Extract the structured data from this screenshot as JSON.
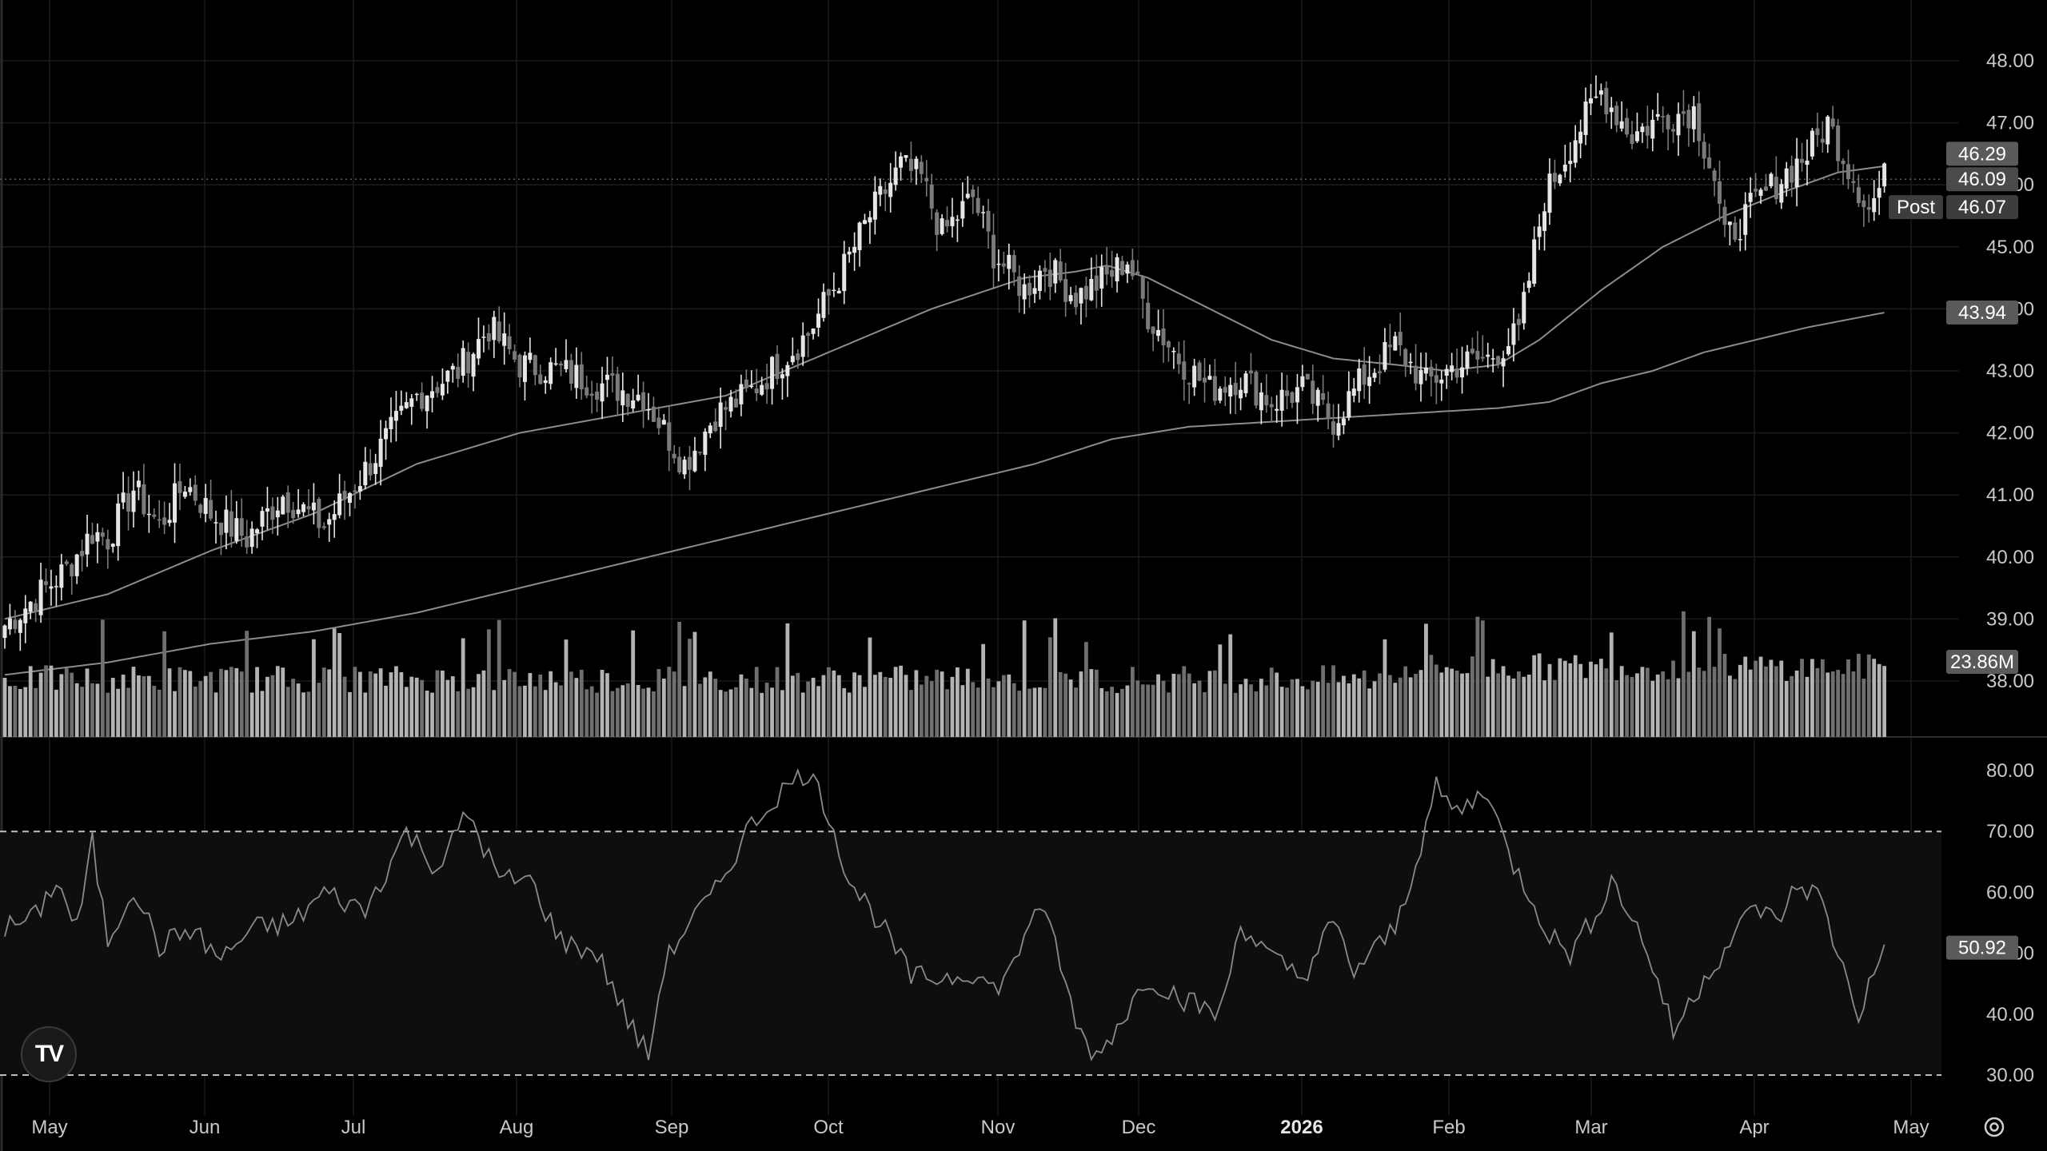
{
  "chart_data": {
    "type": "candlestick",
    "price_axis": {
      "ticks": [
        "48.00",
        "47.00",
        "46.00",
        "45.00",
        "44.00",
        "43.00",
        "42.00",
        "41.00",
        "40.00",
        "39.00",
        "38.00"
      ],
      "ylim": [
        37.2,
        48.7
      ]
    },
    "rsi_axis": {
      "ticks": [
        "80.00",
        "70.00",
        "60.00",
        "50.00",
        "40.00",
        "30.00"
      ],
      "ylim": [
        26,
        84
      ],
      "bands": [
        70,
        30
      ]
    },
    "x_axis": {
      "labels": [
        "May",
        "Jun",
        "Jul",
        "Aug",
        "Sep",
        "Oct",
        "Nov",
        "Dec",
        "2026",
        "Feb",
        "Mar",
        "Apr",
        "May"
      ],
      "bold": [
        "2026"
      ]
    },
    "price_badges": {
      "ma_fast": "46.29",
      "last": "46.09",
      "post_label": "Post",
      "post": "46.07",
      "ma_slow": "43.94",
      "volume": "23.86M",
      "rsi": "50.92"
    },
    "series": [
      {
        "name": "close",
        "anchors": [
          [
            0,
            38.9
          ],
          [
            12,
            39.8
          ],
          [
            17,
            40.4
          ],
          [
            20,
            40.3
          ],
          [
            25,
            41.1
          ],
          [
            30,
            40.5
          ],
          [
            35,
            41.2
          ],
          [
            40,
            40.7
          ],
          [
            47,
            40.3
          ],
          [
            54,
            41.0
          ],
          [
            62,
            40.5
          ],
          [
            70,
            41.4
          ],
          [
            80,
            42.6
          ],
          [
            88,
            43.0
          ],
          [
            94,
            43.7
          ],
          [
            100,
            43.1
          ],
          [
            108,
            43.0
          ],
          [
            115,
            42.8
          ],
          [
            124,
            42.6
          ],
          [
            132,
            41.5
          ],
          [
            138,
            42.3
          ],
          [
            144,
            42.6
          ],
          [
            150,
            43.1
          ],
          [
            156,
            43.6
          ],
          [
            162,
            44.5
          ],
          [
            168,
            45.5
          ],
          [
            174,
            46.3
          ],
          [
            178,
            46.1
          ],
          [
            182,
            45.2
          ],
          [
            188,
            45.8
          ],
          [
            192,
            44.9
          ],
          [
            198,
            44.3
          ],
          [
            202,
            44.7
          ],
          [
            208,
            44.2
          ],
          [
            214,
            44.5
          ],
          [
            218,
            44.8
          ],
          [
            222,
            43.9
          ],
          [
            228,
            43.2
          ],
          [
            234,
            42.7
          ],
          [
            240,
            42.9
          ],
          [
            246,
            42.5
          ],
          [
            252,
            42.7
          ],
          [
            258,
            42.2
          ],
          [
            264,
            42.9
          ],
          [
            270,
            43.4
          ],
          [
            276,
            42.8
          ],
          [
            282,
            43.1
          ],
          [
            288,
            43.2
          ],
          [
            294,
            43.6
          ],
          [
            299,
            45.8
          ],
          [
            305,
            46.8
          ],
          [
            310,
            47.5
          ],
          [
            316,
            46.8
          ],
          [
            322,
            47.1
          ],
          [
            328,
            47.2
          ],
          [
            332,
            46.1
          ],
          [
            334,
            45.1
          ],
          [
            340,
            45.7
          ],
          [
            346,
            46.2
          ],
          [
            350,
            46.5
          ],
          [
            354,
            47.0
          ],
          [
            358,
            46.3
          ],
          [
            362,
            45.6
          ],
          [
            365,
            46.1
          ]
        ],
        "opens_shift": 0.35
      },
      {
        "name": "volume",
        "ylim": [
          0,
          140
        ]
      },
      {
        "name": "RSI",
        "anchors": [
          [
            0,
            54
          ],
          [
            6,
            56
          ],
          [
            10,
            62
          ],
          [
            14,
            54
          ],
          [
            17,
            68
          ],
          [
            20,
            52
          ],
          [
            25,
            61
          ],
          [
            30,
            51
          ],
          [
            36,
            54
          ],
          [
            42,
            49
          ],
          [
            48,
            54
          ],
          [
            56,
            55
          ],
          [
            62,
            60
          ],
          [
            70,
            57
          ],
          [
            78,
            70
          ],
          [
            84,
            64
          ],
          [
            90,
            73
          ],
          [
            96,
            62
          ],
          [
            102,
            62
          ],
          [
            108,
            52
          ],
          [
            115,
            50
          ],
          [
            121,
            39
          ],
          [
            125,
            33
          ],
          [
            128,
            48
          ],
          [
            132,
            54
          ],
          [
            138,
            60
          ],
          [
            144,
            70
          ],
          [
            150,
            76
          ],
          [
            156,
            80
          ],
          [
            160,
            73
          ],
          [
            164,
            62
          ],
          [
            170,
            55
          ],
          [
            176,
            46
          ],
          [
            182,
            46
          ],
          [
            188,
            47
          ],
          [
            192,
            44
          ],
          [
            196,
            48
          ],
          [
            200,
            58
          ],
          [
            204,
            52
          ],
          [
            208,
            38
          ],
          [
            212,
            33
          ],
          [
            216,
            38
          ],
          [
            222,
            46
          ],
          [
            230,
            42
          ],
          [
            236,
            40
          ],
          [
            240,
            55
          ],
          [
            246,
            49
          ],
          [
            252,
            46
          ],
          [
            258,
            55
          ],
          [
            262,
            47
          ],
          [
            270,
            54
          ],
          [
            274,
            65
          ],
          [
            278,
            77
          ],
          [
            282,
            73
          ],
          [
            288,
            77
          ],
          [
            292,
            66
          ],
          [
            296,
            60
          ],
          [
            300,
            53
          ],
          [
            304,
            50
          ],
          [
            308,
            55
          ],
          [
            312,
            62
          ],
          [
            316,
            56
          ],
          [
            320,
            48
          ],
          [
            324,
            37
          ],
          [
            330,
            46
          ],
          [
            336,
            53
          ],
          [
            340,
            58
          ],
          [
            344,
            55
          ],
          [
            348,
            61
          ],
          [
            352,
            60
          ],
          [
            356,
            50
          ],
          [
            360,
            40
          ],
          [
            365,
            51
          ]
        ]
      }
    ],
    "moving_averages": [
      {
        "name": "fast",
        "anchors": [
          [
            0,
            39.0
          ],
          [
            20,
            39.4
          ],
          [
            40,
            40.1
          ],
          [
            60,
            40.7
          ],
          [
            80,
            41.5
          ],
          [
            100,
            42.0
          ],
          [
            120,
            42.3
          ],
          [
            140,
            42.6
          ],
          [
            160,
            43.3
          ],
          [
            180,
            44.0
          ],
          [
            198,
            44.5
          ],
          [
            208,
            44.6
          ],
          [
            214,
            44.7
          ],
          [
            222,
            44.5
          ],
          [
            234,
            44.0
          ],
          [
            246,
            43.5
          ],
          [
            258,
            43.2
          ],
          [
            270,
            43.1
          ],
          [
            280,
            43.0
          ],
          [
            290,
            43.1
          ],
          [
            298,
            43.5
          ],
          [
            310,
            44.3
          ],
          [
            322,
            45.0
          ],
          [
            334,
            45.5
          ],
          [
            346,
            45.9
          ],
          [
            356,
            46.2
          ],
          [
            365,
            46.3
          ]
        ]
      },
      {
        "name": "slow",
        "anchors": [
          [
            0,
            38.1
          ],
          [
            20,
            38.3
          ],
          [
            40,
            38.6
          ],
          [
            60,
            38.8
          ],
          [
            80,
            39.1
          ],
          [
            100,
            39.5
          ],
          [
            120,
            39.9
          ],
          [
            140,
            40.3
          ],
          [
            160,
            40.7
          ],
          [
            180,
            41.1
          ],
          [
            200,
            41.5
          ],
          [
            215,
            41.9
          ],
          [
            230,
            42.1
          ],
          [
            250,
            42.2
          ],
          [
            270,
            42.3
          ],
          [
            290,
            42.4
          ],
          [
            300,
            42.5
          ],
          [
            310,
            42.8
          ],
          [
            320,
            43.0
          ],
          [
            330,
            43.3
          ],
          [
            340,
            43.5
          ],
          [
            350,
            43.7
          ],
          [
            365,
            43.94
          ]
        ]
      }
    ],
    "last_volume_spike_days": [
      295,
      322,
      349
    ]
  }
}
